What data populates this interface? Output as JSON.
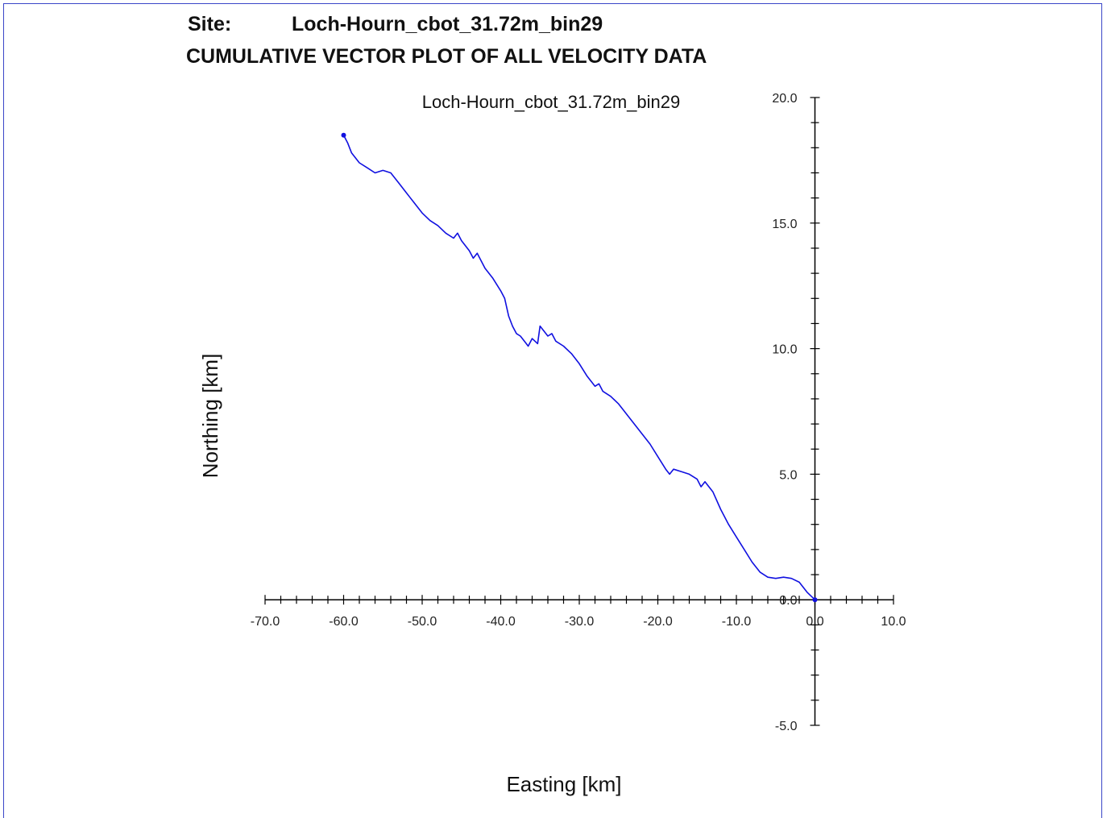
{
  "header": {
    "site_label": "Site:",
    "site_value": "Loch-Hourn_cbot_31.72m_bin29",
    "title": "CUMULATIVE VECTOR PLOT OF ALL VELOCITY DATA"
  },
  "colors": {
    "series": "#1010e0",
    "frame": "#3a46c8",
    "axis": "#000000"
  },
  "chart_data": {
    "type": "line",
    "title": "Loch-Hourn_cbot_31.72m_bin29",
    "xlabel": "Easting [km]",
    "ylabel": "Northing [km]",
    "xlim": [
      -70,
      10
    ],
    "ylim": [
      -5,
      20
    ],
    "grid": false,
    "x_ticks": [
      "-70.0",
      "-60.0",
      "-50.0",
      "-40.0",
      "-30.0",
      "-20.0",
      "-10.0",
      "0.0",
      "10.0"
    ],
    "y_ticks": [
      "20.0",
      "15.0",
      "10.0",
      "5.0",
      "0.0",
      "-5.0"
    ],
    "series": [
      {
        "points": [
          [
            0.0,
            0.0
          ],
          [
            -1.0,
            0.3
          ],
          [
            -2.0,
            0.7
          ],
          [
            -3.0,
            0.85
          ],
          [
            -4.0,
            0.9
          ],
          [
            -5.0,
            0.85
          ],
          [
            -6.0,
            0.9
          ],
          [
            -7.0,
            1.1
          ],
          [
            -8.0,
            1.5
          ],
          [
            -9.0,
            2.0
          ],
          [
            -10.0,
            2.5
          ],
          [
            -11.0,
            3.0
          ],
          [
            -12.0,
            3.6
          ],
          [
            -13.0,
            4.3
          ],
          [
            -13.5,
            4.5
          ],
          [
            -14.0,
            4.7
          ],
          [
            -14.5,
            4.5
          ],
          [
            -15.0,
            4.8
          ],
          [
            -16.0,
            5.0
          ],
          [
            -17.0,
            5.1
          ],
          [
            -18.0,
            5.2
          ],
          [
            -18.5,
            5.0
          ],
          [
            -19.0,
            5.2
          ],
          [
            -20.0,
            5.7
          ],
          [
            -21.0,
            6.2
          ],
          [
            -22.0,
            6.6
          ],
          [
            -23.0,
            7.0
          ],
          [
            -24.0,
            7.4
          ],
          [
            -25.0,
            7.8
          ],
          [
            -26.0,
            8.1
          ],
          [
            -27.0,
            8.3
          ],
          [
            -27.5,
            8.6
          ],
          [
            -28.0,
            8.5
          ],
          [
            -29.0,
            8.9
          ],
          [
            -30.0,
            9.4
          ],
          [
            -31.0,
            9.8
          ],
          [
            -32.0,
            10.1
          ],
          [
            -33.0,
            10.3
          ],
          [
            -33.5,
            10.6
          ],
          [
            -34.0,
            10.5
          ],
          [
            -35.0,
            10.9
          ],
          [
            -35.3,
            10.2
          ],
          [
            -36.0,
            10.4
          ],
          [
            -36.5,
            10.1
          ],
          [
            -37.0,
            10.3
          ],
          [
            -37.5,
            10.5
          ],
          [
            -38.0,
            10.6
          ],
          [
            -38.5,
            10.9
          ],
          [
            -39.0,
            11.3
          ],
          [
            -39.5,
            12.0
          ],
          [
            -40.0,
            12.3
          ],
          [
            -41.0,
            12.8
          ],
          [
            -42.0,
            13.2
          ],
          [
            -43.0,
            13.8
          ],
          [
            -43.5,
            13.6
          ],
          [
            -44.0,
            13.9
          ],
          [
            -45.0,
            14.3
          ],
          [
            -45.5,
            14.6
          ],
          [
            -46.0,
            14.4
          ],
          [
            -47.0,
            14.6
          ],
          [
            -48.0,
            14.9
          ],
          [
            -49.0,
            15.1
          ],
          [
            -50.0,
            15.4
          ],
          [
            -51.0,
            15.8
          ],
          [
            -52.0,
            16.2
          ],
          [
            -53.0,
            16.6
          ],
          [
            -54.0,
            17.0
          ],
          [
            -55.0,
            17.1
          ],
          [
            -56.0,
            17.0
          ],
          [
            -57.0,
            17.2
          ],
          [
            -58.0,
            17.4
          ],
          [
            -59.0,
            17.8
          ],
          [
            -59.5,
            18.2
          ],
          [
            -60.0,
            18.5
          ]
        ]
      }
    ]
  }
}
